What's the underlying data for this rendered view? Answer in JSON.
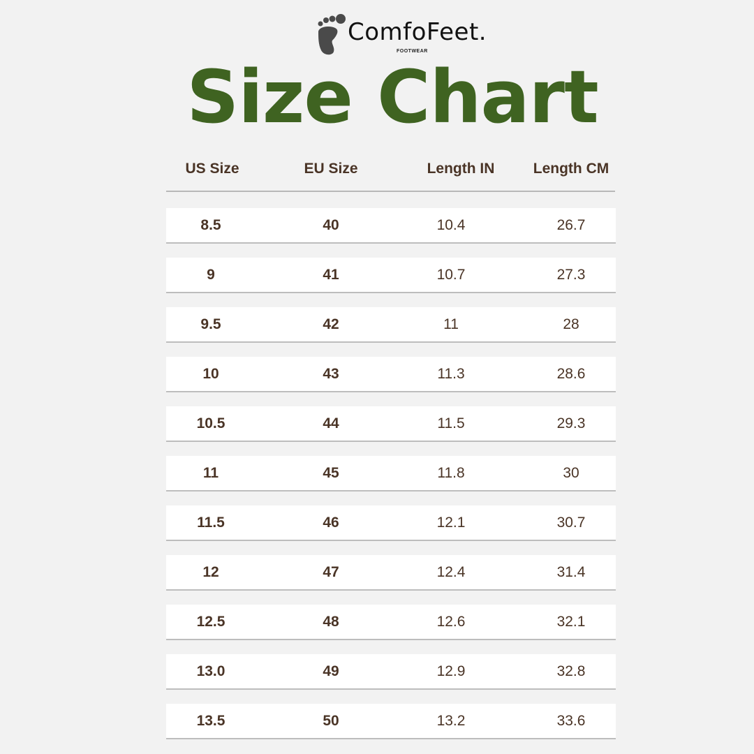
{
  "brand": {
    "name": "ComfoFeet.",
    "tagline": "FOOTWEAR",
    "logo_icon": "footprint-icon"
  },
  "title": "Size Chart",
  "colors": {
    "title": "#3f6321",
    "text": "#4a3426",
    "background": "#f2f2f2"
  },
  "table": {
    "headers": [
      "US Size",
      "EU Size",
      "Length IN",
      "Length CM"
    ],
    "rows": [
      [
        "8.5",
        "40",
        "10.4",
        "26.7"
      ],
      [
        "9",
        "41",
        "10.7",
        "27.3"
      ],
      [
        "9.5",
        "42",
        "11",
        "28"
      ],
      [
        "10",
        "43",
        "11.3",
        "28.6"
      ],
      [
        "10.5",
        "44",
        "11.5",
        "29.3"
      ],
      [
        "11",
        "45",
        "11.8",
        "30"
      ],
      [
        "11.5",
        "46",
        "12.1",
        "30.7"
      ],
      [
        "12",
        "47",
        "12.4",
        "31.4"
      ],
      [
        "12.5",
        "48",
        "12.6",
        "32.1"
      ],
      [
        "13.0",
        "49",
        "12.9",
        "32.8"
      ],
      [
        "13.5",
        "50",
        "13.2",
        "33.6"
      ]
    ]
  }
}
